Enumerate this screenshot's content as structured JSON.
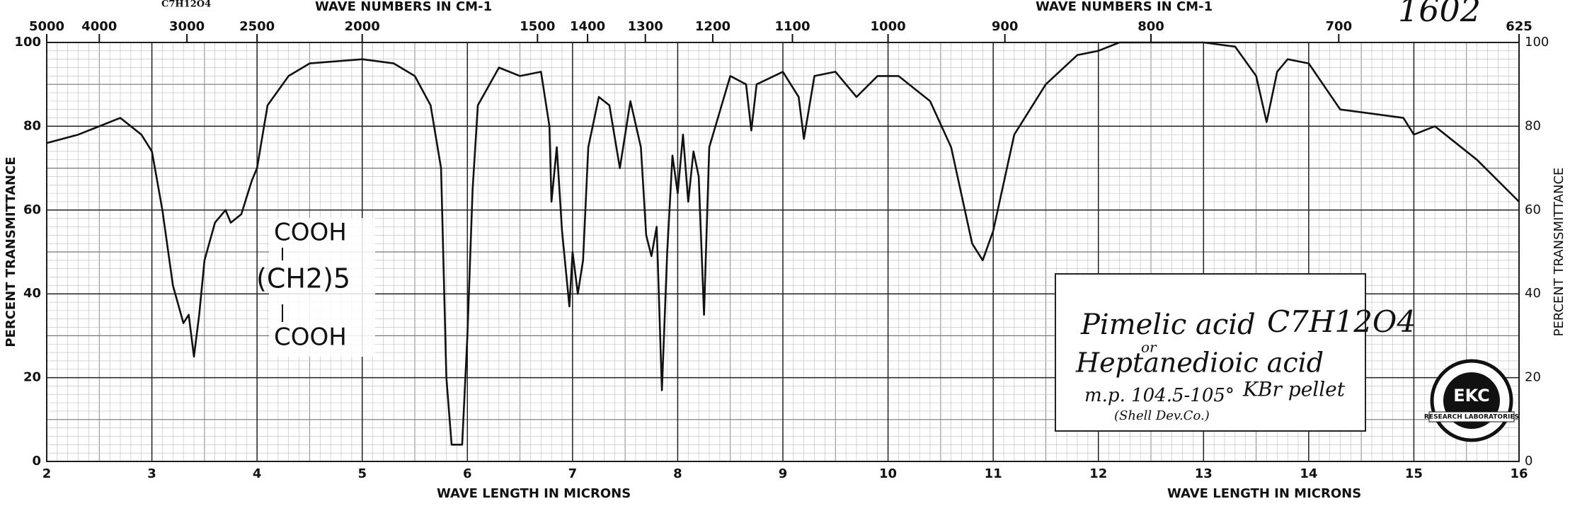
{
  "chart_data": {
    "type": "line",
    "x_label": "WAVE LENGTH IN MICRONS",
    "x2_label": "WAVE NUMBERS IN CM-1",
    "y_label": "PERCENT TRANSMITTANCE",
    "color": "#111111",
    "grid": true,
    "x": [
      2.0,
      2.3,
      2.7,
      2.9,
      3.0,
      3.1,
      3.2,
      3.3,
      3.35,
      3.4,
      3.45,
      3.5,
      3.6,
      3.7,
      3.75,
      3.85,
      3.95,
      4.0,
      4.1,
      4.3,
      4.5,
      5.0,
      5.3,
      5.5,
      5.65,
      5.75,
      5.8,
      5.85,
      5.95,
      6.0,
      6.05,
      6.1,
      6.3,
      6.5,
      6.7,
      6.78,
      6.8,
      6.85,
      6.9,
      6.97,
      7.0,
      7.05,
      7.1,
      7.15,
      7.25,
      7.35,
      7.45,
      7.55,
      7.65,
      7.7,
      7.75,
      7.8,
      7.85,
      7.9,
      7.95,
      8.0,
      8.05,
      8.1,
      8.15,
      8.2,
      8.25,
      8.3,
      8.5,
      8.65,
      8.7,
      8.75,
      9.0,
      9.15,
      9.2,
      9.3,
      9.5,
      9.7,
      9.9,
      10.1,
      10.4,
      10.6,
      10.8,
      10.9,
      11.0,
      11.2,
      11.5,
      11.8,
      12.0,
      12.2,
      12.5,
      13.0,
      13.3,
      13.5,
      13.6,
      13.7,
      13.8,
      14.0,
      14.3,
      14.6,
      14.9,
      15.0,
      15.2,
      15.6,
      16.0
    ],
    "values": [
      76,
      78,
      82,
      78,
      74,
      60,
      42,
      33,
      35,
      25,
      35,
      48,
      57,
      60,
      57,
      59,
      67,
      70,
      85,
      92,
      95,
      96,
      95,
      92,
      85,
      70,
      20,
      4,
      4,
      30,
      65,
      85,
      94,
      92,
      93,
      80,
      62,
      75,
      55,
      37,
      50,
      40,
      48,
      75,
      87,
      85,
      70,
      86,
      75,
      54,
      49,
      56,
      17,
      50,
      73,
      64,
      78,
      62,
      74,
      68,
      35,
      75,
      92,
      90,
      79,
      90,
      93,
      87,
      77,
      92,
      93,
      87,
      92,
      92,
      86,
      75,
      52,
      48,
      55,
      78,
      90,
      97,
      98,
      100,
      100,
      100,
      99,
      92,
      81,
      93,
      96,
      95,
      84,
      83,
      82,
      78,
      80,
      72,
      62
    ],
    "xlim": [
      2,
      16
    ],
    "xticks": [
      2,
      3,
      4,
      5,
      6,
      7,
      8,
      9,
      10,
      11,
      12,
      13,
      14,
      15,
      16
    ],
    "ylim": [
      0,
      100
    ],
    "yticks": [
      0,
      20,
      40,
      60,
      80,
      100
    ],
    "x2ticks": [
      5000,
      4000,
      3000,
      2500,
      2000,
      1500,
      1400,
      1300,
      1200,
      1100,
      1000,
      900,
      800,
      700,
      625
    ],
    "annotations": {
      "catalog_number": "1602",
      "top_formula": "C7H12O4",
      "name": "Pimelic acid",
      "formula": "C7H12O4",
      "or": "or",
      "alt_name": "Heptanedioic acid",
      "melting_point": "m.p. 104.5-105°",
      "sample": "KBr pellet",
      "source": "(Shell Dev.Co.)",
      "structure_top": "COOH",
      "structure_middle": "(CH2)5",
      "structure_bottom": "COOH"
    },
    "logo": {
      "center": "EKC",
      "bottom": "RESEARCH LABORATORIES"
    }
  }
}
